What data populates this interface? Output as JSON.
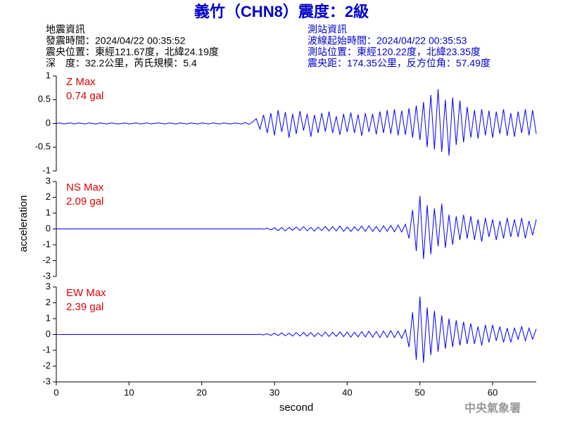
{
  "header": {
    "title": "義竹（CHN8）震度：2級",
    "left": [
      "地震資訊",
      "發震時間：2024/04/22 00:35:52",
      "震央位置：東經121.67度，北緯24.19度",
      "深　度：32.2公里，芮氏規模：5.4"
    ],
    "right": [
      "測站資訊",
      "波線起始時間：2024/04/22 00:35:53",
      "測站位置：東經120.22度，北緯23.35度",
      "震央距：174.35公里，反方位角：57.49度"
    ],
    "ylabel": "acceleration",
    "footer": "中央氣象署"
  },
  "chart_data": [
    {
      "type": "line",
      "annotation": [
        "Z Max",
        "0.74 gal"
      ],
      "xlim": [
        0,
        66
      ],
      "ylim": [
        -1,
        1
      ],
      "yticks": [
        1,
        0.5,
        0,
        -0.5,
        -1
      ],
      "x": [
        0,
        0.5,
        1,
        1.5,
        2,
        2.5,
        3,
        3.5,
        4,
        4.5,
        5,
        5.5,
        6,
        6.5,
        7,
        7.5,
        8,
        8.5,
        9,
        9.5,
        10,
        10.5,
        11,
        11.5,
        12,
        12.5,
        13,
        13.5,
        14,
        14.5,
        15,
        15.5,
        16,
        16.5,
        17,
        17.5,
        18,
        18.5,
        19,
        19.5,
        20,
        20.5,
        21,
        21.5,
        22,
        22.5,
        23,
        23.5,
        24,
        24.5,
        25,
        25.5,
        26,
        26.5,
        27,
        27.5,
        28,
        28.5,
        29,
        29.5,
        30,
        30.5,
        31,
        31.5,
        32,
        32.5,
        33,
        33.5,
        34,
        34.5,
        35,
        35.5,
        36,
        36.5,
        37,
        37.5,
        38,
        38.5,
        39,
        39.5,
        40,
        40.5,
        41,
        41.5,
        42,
        42.5,
        43,
        43.5,
        44,
        44.5,
        45,
        45.5,
        46,
        46.5,
        47,
        47.5,
        48,
        48.5,
        49,
        49.5,
        50,
        50.5,
        51,
        51.5,
        52,
        52.5,
        53,
        53.5,
        54,
        54.5,
        55,
        55.5,
        56,
        56.5,
        57,
        57.5,
        58,
        58.5,
        59,
        59.5,
        60,
        60.5,
        61,
        61.5,
        62,
        62.5,
        63,
        63.5,
        64,
        64.5,
        65,
        65.5,
        66
      ],
      "series": [
        {
          "name": "Z",
          "color": "#0000ff",
          "values": [
            0,
            0.01,
            -0.01,
            0,
            0.01,
            -0.01,
            0.01,
            0,
            -0.01,
            0.01,
            0,
            -0.01,
            0.01,
            0,
            -0.01,
            0.01,
            0,
            -0.01,
            0,
            0.01,
            -0.01,
            0,
            0.01,
            -0.01,
            0,
            0.01,
            -0.01,
            0,
            0.01,
            0,
            -0.01,
            0.01,
            0,
            -0.01,
            0.01,
            0,
            -0.01,
            0.01,
            0,
            -0.01,
            0.01,
            0,
            -0.01,
            0.01,
            0,
            -0.01,
            0.01,
            0,
            -0.01,
            0.01,
            0,
            -0.01,
            0.02,
            -0.02,
            0.03,
            0.1,
            -0.12,
            0.18,
            -0.2,
            0.22,
            -0.25,
            0.28,
            -0.18,
            0.24,
            -0.3,
            0.2,
            -0.22,
            0.26,
            -0.15,
            0.2,
            -0.28,
            0.18,
            -0.2,
            0.22,
            -0.17,
            0.25,
            -0.2,
            0.15,
            -0.24,
            0.2,
            -0.18,
            0.23,
            -0.2,
            0.19,
            -0.26,
            0.22,
            -0.18,
            0.2,
            -0.23,
            0.25,
            -0.2,
            0.28,
            -0.22,
            0.3,
            -0.25,
            0.27,
            -0.24,
            0.32,
            -0.3,
            0.38,
            -0.35,
            0.45,
            -0.5,
            0.6,
            -0.55,
            0.72,
            -0.6,
            0.5,
            -0.68,
            0.55,
            -0.45,
            0.48,
            -0.4,
            0.35,
            -0.3,
            0.28,
            -0.32,
            0.3,
            -0.25,
            0.27,
            -0.3,
            0.25,
            -0.22,
            0.3,
            -0.26,
            0.22,
            -0.28,
            0.25,
            -0.2,
            0.3,
            -0.25,
            0.28,
            -0.22
          ]
        }
      ]
    },
    {
      "type": "line",
      "annotation": [
        "NS Max",
        "2.09 gal"
      ],
      "xlim": [
        0,
        66
      ],
      "ylim": [
        -3,
        3
      ],
      "yticks": [
        3,
        2,
        1,
        0,
        -1,
        -2,
        -3
      ],
      "x": [
        0,
        0.5,
        1,
        1.5,
        2,
        2.5,
        3,
        3.5,
        4,
        4.5,
        5,
        5.5,
        6,
        6.5,
        7,
        7.5,
        8,
        8.5,
        9,
        9.5,
        10,
        10.5,
        11,
        11.5,
        12,
        12.5,
        13,
        13.5,
        14,
        14.5,
        15,
        15.5,
        16,
        16.5,
        17,
        17.5,
        18,
        18.5,
        19,
        19.5,
        20,
        20.5,
        21,
        21.5,
        22,
        22.5,
        23,
        23.5,
        24,
        24.5,
        25,
        25.5,
        26,
        26.5,
        27,
        27.5,
        28,
        28.5,
        29,
        29.5,
        30,
        30.5,
        31,
        31.5,
        32,
        32.5,
        33,
        33.5,
        34,
        34.5,
        35,
        35.5,
        36,
        36.5,
        37,
        37.5,
        38,
        38.5,
        39,
        39.5,
        40,
        40.5,
        41,
        41.5,
        42,
        42.5,
        43,
        43.5,
        44,
        44.5,
        45,
        45.5,
        46,
        46.5,
        47,
        47.5,
        48,
        48.5,
        49,
        49.5,
        50,
        50.5,
        51,
        51.5,
        52,
        52.5,
        53,
        53.5,
        54,
        54.5,
        55,
        55.5,
        56,
        56.5,
        57,
        57.5,
        58,
        58.5,
        59,
        59.5,
        60,
        60.5,
        61,
        61.5,
        62,
        62.5,
        63,
        63.5,
        64,
        64.5,
        65,
        65.5,
        66
      ],
      "series": [
        {
          "name": "NS",
          "color": "#0000ff",
          "values": [
            0,
            0,
            0,
            0,
            0,
            0,
            0,
            0,
            0,
            0,
            0,
            0,
            0,
            0,
            0,
            0,
            0,
            0,
            0,
            0,
            0,
            0,
            0,
            0,
            0,
            0,
            0,
            0,
            0,
            0,
            0,
            0,
            0,
            0,
            0,
            0,
            0,
            0,
            0,
            0,
            0,
            0,
            0,
            0,
            0,
            0,
            0,
            0,
            0,
            0,
            0,
            0,
            0,
            0,
            0,
            0,
            0.02,
            -0.02,
            0.05,
            -0.06,
            0.08,
            -0.1,
            0.09,
            -0.12,
            0.1,
            -0.08,
            0.12,
            -0.1,
            0.15,
            -0.12,
            0.1,
            -0.14,
            0.12,
            -0.1,
            0.16,
            -0.13,
            0.15,
            -0.12,
            0.18,
            -0.15,
            0.12,
            -0.16,
            0.14,
            -0.12,
            0.18,
            -0.15,
            0.2,
            -0.16,
            0.15,
            -0.18,
            0.2,
            -0.15,
            0.22,
            -0.18,
            0.25,
            -0.2,
            0.3,
            -0.6,
            1.2,
            -1.4,
            2.09,
            -1.9,
            1.5,
            -1.6,
            1.3,
            -1.1,
            1.6,
            -1.2,
            0.9,
            -1.0,
            0.8,
            -0.7,
            0.9,
            -0.6,
            0.8,
            -0.7,
            0.6,
            -0.8,
            0.7,
            -0.5,
            0.6,
            -0.7,
            0.5,
            -0.6,
            0.7,
            -0.5,
            0.6,
            -0.5,
            0.7,
            -0.6,
            0.5,
            -0.4,
            0.6
          ]
        }
      ]
    },
    {
      "type": "line",
      "annotation": [
        "EW Max",
        "2.39 gal"
      ],
      "xlim": [
        0,
        66
      ],
      "ylim": [
        -3,
        3
      ],
      "yticks": [
        3,
        2,
        1,
        0,
        -1,
        -2,
        -3
      ],
      "xticks": [
        0,
        10,
        20,
        30,
        40,
        50,
        60
      ],
      "xlabel": "second",
      "x": [
        0,
        0.5,
        1,
        1.5,
        2,
        2.5,
        3,
        3.5,
        4,
        4.5,
        5,
        5.5,
        6,
        6.5,
        7,
        7.5,
        8,
        8.5,
        9,
        9.5,
        10,
        10.5,
        11,
        11.5,
        12,
        12.5,
        13,
        13.5,
        14,
        14.5,
        15,
        15.5,
        16,
        16.5,
        17,
        17.5,
        18,
        18.5,
        19,
        19.5,
        20,
        20.5,
        21,
        21.5,
        22,
        22.5,
        23,
        23.5,
        24,
        24.5,
        25,
        25.5,
        26,
        26.5,
        27,
        27.5,
        28,
        28.5,
        29,
        29.5,
        30,
        30.5,
        31,
        31.5,
        32,
        32.5,
        33,
        33.5,
        34,
        34.5,
        35,
        35.5,
        36,
        36.5,
        37,
        37.5,
        38,
        38.5,
        39,
        39.5,
        40,
        40.5,
        41,
        41.5,
        42,
        42.5,
        43,
        43.5,
        44,
        44.5,
        45,
        45.5,
        46,
        46.5,
        47,
        47.5,
        48,
        48.5,
        49,
        49.5,
        50,
        50.5,
        51,
        51.5,
        52,
        52.5,
        53,
        53.5,
        54,
        54.5,
        55,
        55.5,
        56,
        56.5,
        57,
        57.5,
        58,
        58.5,
        59,
        59.5,
        60,
        60.5,
        61,
        61.5,
        62,
        62.5,
        63,
        63.5,
        64,
        64.5,
        65,
        65.5,
        66
      ],
      "series": [
        {
          "name": "EW",
          "color": "#0000ff",
          "values": [
            0,
            0,
            0,
            0,
            0,
            0,
            0,
            0,
            0,
            0,
            0,
            0,
            0,
            0,
            0,
            0,
            0,
            0,
            0,
            0,
            0,
            0,
            0,
            0,
            0,
            0,
            0,
            0,
            0,
            0,
            0,
            0,
            0,
            0,
            0,
            0,
            0,
            0,
            0,
            0,
            0,
            0,
            0,
            0,
            0,
            0,
            0,
            0,
            0,
            0,
            0,
            0,
            0,
            0,
            0,
            0,
            0.02,
            -0.03,
            0.05,
            -0.06,
            0.08,
            -0.07,
            0.1,
            -0.09,
            0.08,
            -0.1,
            0.12,
            -0.1,
            0.13,
            -0.11,
            0.12,
            -0.14,
            0.1,
            -0.12,
            0.15,
            -0.13,
            0.14,
            -0.12,
            0.16,
            -0.14,
            0.15,
            -0.17,
            0.14,
            -0.15,
            0.18,
            -0.16,
            0.2,
            -0.17,
            0.18,
            -0.2,
            0.22,
            -0.18,
            0.25,
            -0.2,
            0.22,
            -0.25,
            0.3,
            -0.8,
            1.4,
            -1.6,
            2.39,
            -1.8,
            1.7,
            -1.3,
            1.5,
            -1.1,
            1.2,
            -0.9,
            1.0,
            -0.8,
            0.9,
            -0.7,
            0.8,
            -0.6,
            0.7,
            -0.6,
            0.5,
            -0.7,
            0.6,
            -0.5,
            0.6,
            -0.4,
            0.5,
            -0.5,
            0.4,
            -0.5,
            0.4,
            -0.3,
            0.5,
            -0.4,
            0.4,
            -0.3,
            0.35
          ]
        }
      ]
    }
  ]
}
